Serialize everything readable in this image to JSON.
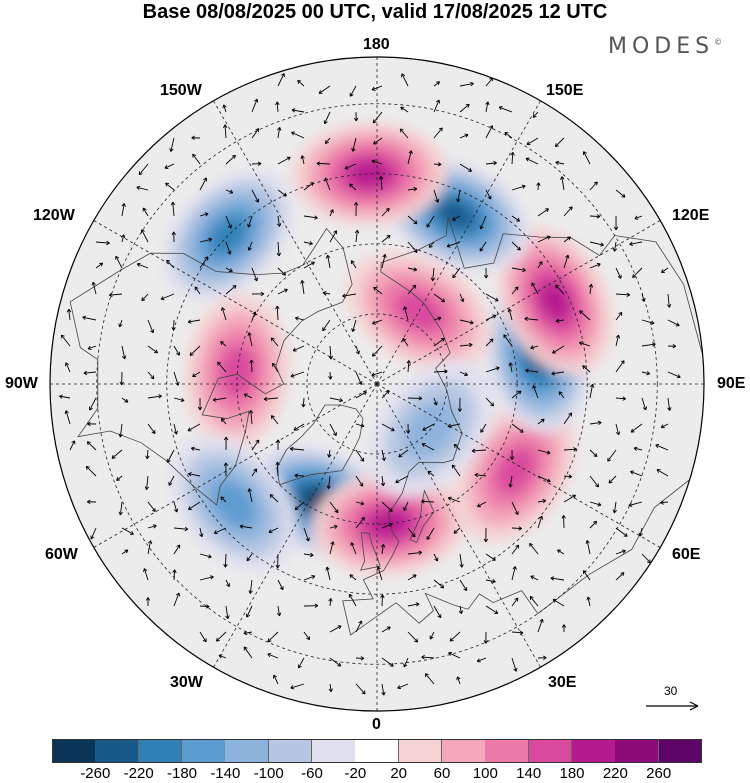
{
  "title": "Base 08/08/2025 00 UTC, valid 17/08/2025 12 UTC",
  "brand": "MODES",
  "brand_mark": "©",
  "map": {
    "projection": "north-polar-stereographic",
    "lon_labels": {
      "top": "180",
      "bottom": "0",
      "left": "90W",
      "right": "90E",
      "upper_left_1": "150W",
      "upper_left_2": "120W",
      "upper_right_1": "150E",
      "upper_right_2": "120E",
      "lower_left_1": "60W",
      "lower_left_2": "30W",
      "lower_right_1": "60E",
      "lower_right_2": "30E"
    },
    "vector_scale_label": "30",
    "anomaly_centers": [
      {
        "name": "neg-north-atlantic",
        "lat": 62,
        "lon": -25,
        "value": -260
      },
      {
        "name": "pos-europe",
        "lat": 60,
        "lon": 5,
        "value": 180
      },
      {
        "name": "pos-russia",
        "lat": 55,
        "lon": 58,
        "value": 160
      },
      {
        "name": "neg-siberia",
        "lat": 55,
        "lon": 100,
        "value": -220
      },
      {
        "name": "pos-eastern-siberia",
        "lat": 48,
        "lon": 115,
        "value": 180
      },
      {
        "name": "neg-north-pacific",
        "lat": 50,
        "lon": 155,
        "value": -220
      },
      {
        "name": "pos-bering",
        "lat": 45,
        "lon": -178,
        "value": 200
      },
      {
        "name": "neg-alaska-gulf",
        "lat": 45,
        "lon": -135,
        "value": -200
      },
      {
        "name": "pos-canada",
        "lat": 60,
        "lon": -95,
        "value": 160
      },
      {
        "name": "neg-labrador",
        "lat": 50,
        "lon": -50,
        "value": -140
      },
      {
        "name": "pos-chukchi",
        "lat": 72,
        "lon": 150,
        "value": 140
      },
      {
        "name": "neg-arctic",
        "lat": 75,
        "lon": 50,
        "value": -100
      }
    ]
  },
  "colorbar": {
    "colors": [
      "#0b3556",
      "#19598a",
      "#2f80b5",
      "#5c9bcf",
      "#8db3dc",
      "#b6c6e3",
      "#e0e0ef",
      "#ffffff",
      "#f6d2d2",
      "#f3a8bb",
      "#eb7aa8",
      "#d94a9e",
      "#b51b8f",
      "#8d0a7b",
      "#5e0468"
    ],
    "tick_labels": [
      "-260",
      "-220",
      "-180",
      "-140",
      "-100",
      "-60",
      "-20",
      "20",
      "60",
      "100",
      "140",
      "180",
      "220",
      "260"
    ]
  }
}
